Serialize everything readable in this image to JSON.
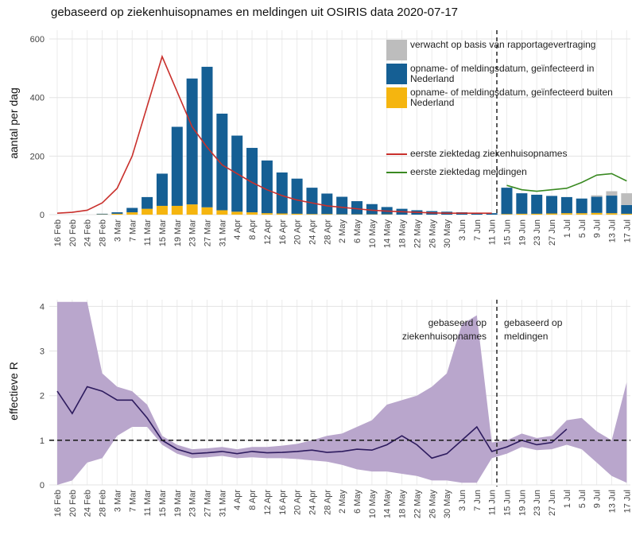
{
  "chart_data": [
    {
      "type": "bar",
      "title": "gebaseerd op ziekenhuisopnames en meldingen uit OSIRIS data 2020-07-17",
      "y_label": "aantal per dag",
      "categories": [
        "16 Feb",
        "20 Feb",
        "24 Feb",
        "28 Feb",
        "3 Mar",
        "7 Mar",
        "11 Mar",
        "15 Mar",
        "19 Mar",
        "23 Mar",
        "27 Mar",
        "31 Mar",
        "4 Apr",
        "8 Apr",
        "12 Apr",
        "16 Apr",
        "20 Apr",
        "24 Apr",
        "28 Apr",
        "2 May",
        "6 May",
        "10 May",
        "14 May",
        "18 May",
        "22 May",
        "26 May",
        "30 May",
        "3 Jun",
        "7 Jun",
        "11 Jun",
        "15 Jun",
        "19 Jun",
        "23 Jun",
        "27 Jun",
        "1 Jul",
        "5 Jul",
        "9 Jul",
        "13 Jul",
        "17 Jul"
      ],
      "ylim": [
        0,
        630
      ],
      "yticks": [
        0,
        200,
        400,
        600
      ],
      "grid": true,
      "series": [
        {
          "name": "opname- of meldingsdatum, geïnfecteerd buiten Nederland",
          "type": "bar",
          "color": "#f5b50f",
          "values": [
            0,
            0,
            0,
            1,
            3,
            8,
            20,
            30,
            30,
            35,
            25,
            15,
            10,
            8,
            5,
            4,
            3,
            2,
            2,
            1,
            1,
            1,
            1,
            0,
            0,
            0,
            0,
            0,
            0,
            0,
            2,
            3,
            3,
            4,
            5,
            5,
            6,
            5,
            3
          ]
        },
        {
          "name": "opname- of meldingsdatum, geïnfecteerd in Nederland",
          "type": "bar",
          "color": "#155f94",
          "values": [
            0,
            0,
            0,
            2,
            5,
            15,
            40,
            110,
            270,
            430,
            480,
            330,
            260,
            220,
            180,
            140,
            120,
            90,
            70,
            60,
            45,
            35,
            25,
            20,
            15,
            12,
            10,
            8,
            5,
            5,
            90,
            70,
            65,
            60,
            55,
            50,
            55,
            60,
            30
          ]
        },
        {
          "name": "verwacht op basis van rapportagevertraging",
          "type": "bar",
          "color": "#bdbdbd",
          "values": [
            0,
            0,
            0,
            0,
            0,
            0,
            0,
            0,
            0,
            0,
            0,
            0,
            0,
            0,
            0,
            0,
            0,
            0,
            0,
            0,
            0,
            0,
            0,
            0,
            0,
            0,
            0,
            0,
            0,
            0,
            0,
            0,
            0,
            0,
            0,
            0,
            5,
            15,
            40
          ]
        },
        {
          "name": "eerste ziektedag ziekenhuisopnames",
          "type": "line",
          "color": "#c9302c",
          "values": [
            5,
            8,
            15,
            40,
            90,
            200,
            370,
            540,
            420,
            300,
            230,
            170,
            140,
            110,
            85,
            65,
            50,
            40,
            30,
            25,
            20,
            15,
            12,
            10,
            8,
            6,
            5,
            5,
            5,
            5,
            null,
            null,
            null,
            null,
            null,
            null,
            null,
            null,
            null
          ]
        },
        {
          "name": "eerste ziektedag meldingen",
          "type": "line",
          "color": "#3a8a22",
          "values": [
            null,
            null,
            null,
            null,
            null,
            null,
            null,
            null,
            null,
            null,
            null,
            null,
            null,
            null,
            null,
            null,
            null,
            null,
            null,
            null,
            null,
            null,
            null,
            null,
            null,
            null,
            null,
            null,
            null,
            null,
            100,
            85,
            80,
            85,
            90,
            110,
            135,
            140,
            115
          ]
        }
      ]
    },
    {
      "type": "line",
      "y_label": "effectieve R",
      "categories": [
        "16 Feb",
        "20 Feb",
        "24 Feb",
        "28 Feb",
        "3 Mar",
        "7 Mar",
        "11 Mar",
        "15 Mar",
        "19 Mar",
        "23 Mar",
        "27 Mar",
        "31 Mar",
        "4 Apr",
        "8 Apr",
        "12 Apr",
        "16 Apr",
        "20 Apr",
        "24 Apr",
        "28 Apr",
        "2 May",
        "6 May",
        "10 May",
        "14 May",
        "18 May",
        "22 May",
        "26 May",
        "30 May",
        "3 Jun",
        "7 Jun",
        "11 Jun",
        "15 Jun",
        "19 Jun",
        "23 Jun",
        "27 Jun",
        "1 Jul",
        "5 Jul",
        "9 Jul",
        "13 Jul",
        "17 Jul"
      ],
      "ylim": [
        0,
        4.15
      ],
      "yticks": [
        0,
        1,
        2,
        3,
        4
      ],
      "grid": true,
      "reference_line": 1,
      "annotations": [
        "gebaseerd op ziekenhuisopnames",
        "gebaseerd op meldingen"
      ],
      "series": [
        {
          "color": "#2d1b5e",
          "band_color": "#b9a6cc",
          "values": [
            2.1,
            1.6,
            2.2,
            2.1,
            1.9,
            1.9,
            1.5,
            1.0,
            0.8,
            0.7,
            0.72,
            0.75,
            0.7,
            0.75,
            0.72,
            0.73,
            0.75,
            0.78,
            0.73,
            0.75,
            0.8,
            0.78,
            0.9,
            1.1,
            0.9,
            0.6,
            0.7,
            1.0,
            1.3,
            0.75,
            0.85,
            1.0,
            0.9,
            0.95,
            1.25,
            null,
            null,
            null,
            null
          ],
          "lower": [
            0,
            0.1,
            0.5,
            0.6,
            1.1,
            1.3,
            1.3,
            0.9,
            0.7,
            0.6,
            0.62,
            0.65,
            0.6,
            0.62,
            0.6,
            0.6,
            0.58,
            0.55,
            0.52,
            0.45,
            0.35,
            0.3,
            0.3,
            0.25,
            0.2,
            0.1,
            0.1,
            0.05,
            0.05,
            0.6,
            0.7,
            0.85,
            0.78,
            0.8,
            0.9,
            0.8,
            0.5,
            0.2,
            0.05
          ],
          "upper": [
            4.1,
            4.1,
            4.1,
            2.5,
            2.2,
            2.1,
            1.8,
            1.1,
            0.9,
            0.8,
            0.82,
            0.85,
            0.8,
            0.85,
            0.85,
            0.88,
            0.92,
            1.0,
            1.1,
            1.15,
            1.3,
            1.45,
            1.8,
            1.9,
            2.0,
            2.2,
            2.5,
            3.6,
            3.8,
            0.95,
            1.0,
            1.15,
            1.05,
            1.1,
            1.45,
            1.5,
            1.2,
            1.0,
            2.3
          ]
        }
      ]
    }
  ]
}
